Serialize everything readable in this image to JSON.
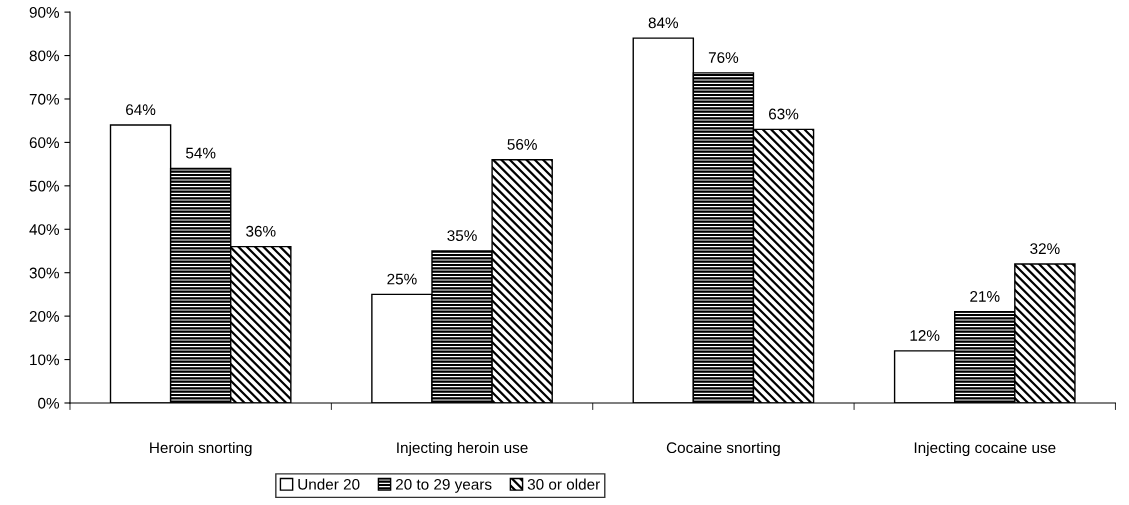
{
  "chart_data": {
    "type": "bar",
    "categories": [
      "Heroin snorting",
      "Injecting heroin use",
      "Cocaine snorting",
      "Injecting cocaine use"
    ],
    "series": [
      {
        "name": "Under 20",
        "color": "#ffffff",
        "values": [
          64,
          25,
          84,
          12
        ]
      },
      {
        "name": "20 to 29 years",
        "color": "#000000",
        "values": [
          54,
          35,
          76,
          21
        ]
      },
      {
        "name": "30 or older",
        "color": "#000000",
        "values": [
          36,
          56,
          63,
          32
        ]
      }
    ],
    "ylim": [
      0,
      90
    ],
    "yticks": [
      {
        "value": 0,
        "label": "0%"
      },
      {
        "value": 10,
        "label": "10%"
      },
      {
        "value": 20,
        "label": "20%"
      },
      {
        "value": 30,
        "label": "30%"
      },
      {
        "value": 40,
        "label": "40%"
      },
      {
        "value": 50,
        "label": "50%"
      },
      {
        "value": 60,
        "label": "60%"
      },
      {
        "value": 70,
        "label": "70%"
      },
      {
        "value": 80,
        "label": "80%"
      },
      {
        "value": 90,
        "label": "90%"
      }
    ],
    "value_labels": [
      [
        "64%",
        "25%",
        "84%",
        "12%"
      ],
      [
        "54%",
        "35%",
        "76%",
        "21%"
      ],
      [
        "36%",
        "56%",
        "63%",
        "32%"
      ]
    ],
    "grid": false,
    "legend": "bottom"
  }
}
